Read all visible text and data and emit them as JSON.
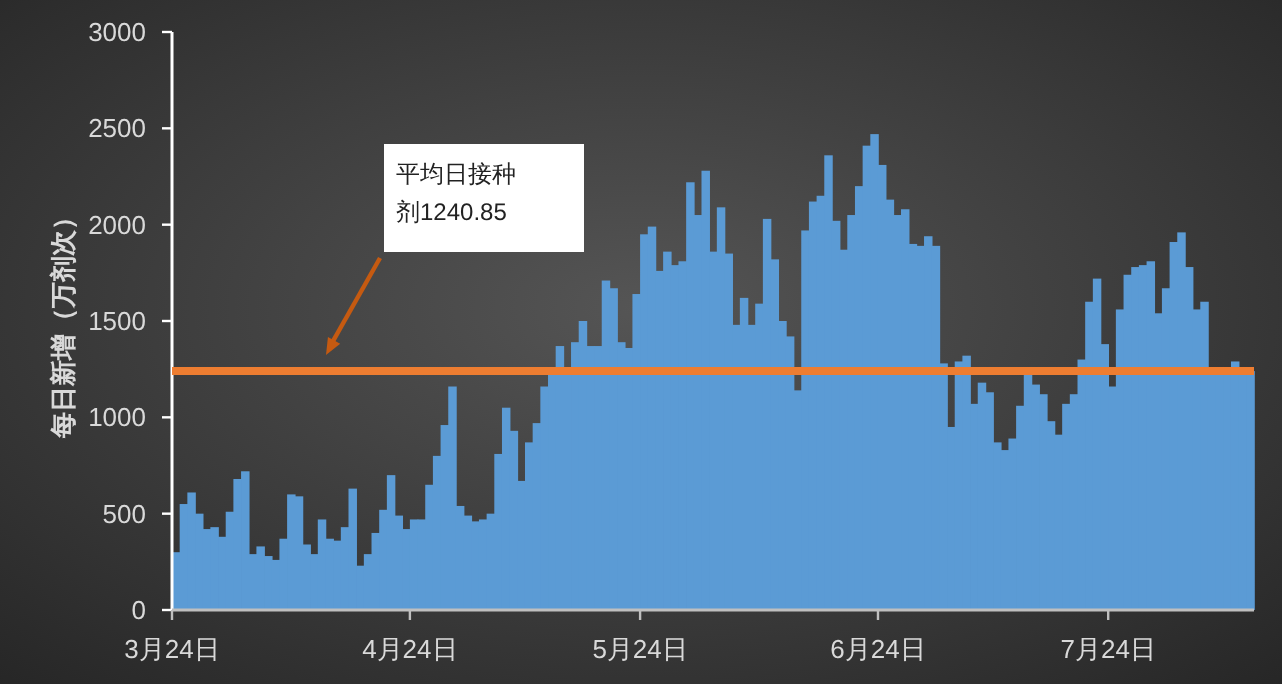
{
  "chart_data": {
    "type": "bar",
    "ylabel": "每日新增（万剂次）",
    "x": [
      "--03-24",
      "--03-25",
      "--03-26",
      "--03-27",
      "--03-28",
      "--03-29",
      "--03-30",
      "--03-31",
      "--04-01",
      "--04-02",
      "--04-03",
      "--04-04",
      "--04-05",
      "--04-06",
      "--04-07",
      "--04-08",
      "--04-09",
      "--04-10",
      "--04-11",
      "--04-12",
      "--04-13",
      "--04-14",
      "--04-15",
      "--04-16",
      "--04-17",
      "--04-18",
      "--04-19",
      "--04-20",
      "--04-21",
      "--04-22",
      "--04-23",
      "--04-24",
      "--04-25",
      "--04-26",
      "--04-27",
      "--04-28",
      "--04-29",
      "--04-30",
      "--05-01",
      "--05-02",
      "--05-03",
      "--05-04",
      "--05-05",
      "--05-06",
      "--05-07",
      "--05-08",
      "--05-09",
      "--05-10",
      "--05-11",
      "--05-12",
      "--05-13",
      "--05-14",
      "--05-15",
      "--05-16",
      "--05-17",
      "--05-18",
      "--05-19",
      "--05-20",
      "--05-21",
      "--05-22",
      "--05-23",
      "--05-24",
      "--05-25",
      "--05-26",
      "--05-27",
      "--05-28",
      "--05-29",
      "--05-30",
      "--05-31",
      "--06-01",
      "--06-02",
      "--06-03",
      "--06-04",
      "--06-05",
      "--06-06",
      "--06-07",
      "--06-08",
      "--06-09",
      "--06-10",
      "--06-11",
      "--06-12",
      "--06-13",
      "--06-14",
      "--06-15",
      "--06-16",
      "--06-17",
      "--06-18",
      "--06-19",
      "--06-20",
      "--06-21",
      "--06-22",
      "--06-23",
      "--06-24",
      "--06-25",
      "--06-26",
      "--06-27",
      "--06-28",
      "--06-29",
      "--06-30",
      "--07-01",
      "--07-02",
      "--07-03",
      "--07-04",
      "--07-05",
      "--07-06",
      "--07-07",
      "--07-08",
      "--07-09",
      "--07-10",
      "--07-11",
      "--07-12",
      "--07-13",
      "--07-14",
      "--07-15",
      "--07-16",
      "--07-17",
      "--07-18",
      "--07-19",
      "--07-20",
      "--07-21",
      "--07-22",
      "--07-23",
      "--07-24",
      "--07-25",
      "--07-26",
      "--07-27",
      "--07-28",
      "--07-29",
      "--07-30",
      "--07-31",
      "--08-01",
      "--08-02",
      "--08-03",
      "--08-04",
      "--08-05",
      "--08-06",
      "--08-07",
      "--08-08",
      "--08-09",
      "--08-10",
      "--08-11"
    ],
    "values": [
      300,
      550,
      610,
      500,
      420,
      430,
      380,
      510,
      680,
      720,
      290,
      330,
      280,
      260,
      370,
      600,
      590,
      340,
      290,
      470,
      370,
      360,
      430,
      630,
      230,
      290,
      400,
      520,
      700,
      490,
      420,
      470,
      470,
      650,
      800,
      960,
      1160,
      540,
      490,
      460,
      470,
      500,
      810,
      1050,
      930,
      670,
      870,
      970,
      1160,
      1220,
      1370,
      1220,
      1390,
      1500,
      1370,
      1370,
      1710,
      1670,
      1390,
      1360,
      1640,
      1950,
      1990,
      1760,
      1860,
      1790,
      1810,
      2220,
      2050,
      2280,
      1860,
      2090,
      1850,
      1480,
      1620,
      1480,
      1590,
      2030,
      1820,
      1500,
      1420,
      1140,
      1970,
      2120,
      2150,
      2360,
      2020,
      1870,
      2050,
      2200,
      2410,
      2470,
      2310,
      2130,
      2050,
      2080,
      1900,
      1890,
      1940,
      1890,
      1280,
      950,
      1290,
      1320,
      1070,
      1180,
      1130,
      870,
      830,
      890,
      1060,
      1220,
      1170,
      1120,
      980,
      910,
      1070,
      1120,
      1300,
      1600,
      1720,
      1380,
      1160,
      1560,
      1740,
      1780,
      1790,
      1810,
      1540,
      1670,
      1910,
      1960,
      1780,
      1560,
      1600,
      1240,
      1220,
      1240,
      1290,
      1240,
      1240
    ],
    "color": "#5b9bd5",
    "xlim": [
      "--03-24",
      "--08-12"
    ],
    "xticks": [
      {
        "value": "--03-24",
        "label": "3月24日"
      },
      {
        "value": "--04-24",
        "label": "4月24日"
      },
      {
        "value": "--05-24",
        "label": "5月24日"
      },
      {
        "value": "--06-24",
        "label": "6月24日"
      },
      {
        "value": "--07-24",
        "label": "7月24日"
      }
    ],
    "ylim": [
      0,
      3000
    ],
    "yticks": [
      0,
      500,
      1000,
      1500,
      2000,
      2500,
      3000
    ],
    "ref_lines": [
      {
        "axis": "y",
        "value": 1240.85,
        "color": "#ed7d31"
      }
    ],
    "annotations": [
      "平均日接种剂1240.85"
    ],
    "grid": false
  }
}
